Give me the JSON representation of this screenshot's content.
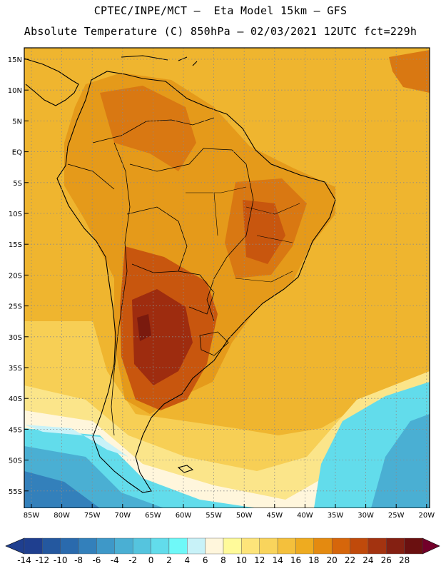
{
  "header": {
    "line1": "CPTEC/INPE/MCT –  Eta Model 15km – GFS",
    "line2": "Absolute Temperature (C) 850hPa – 02/03/2021 12UTC fct=229h"
  },
  "map": {
    "lat_labels": [
      "15N",
      "10N",
      "5N",
      "EQ",
      "5S",
      "10S",
      "15S",
      "20S",
      "25S",
      "30S",
      "35S",
      "40S",
      "45S",
      "50S",
      "55S"
    ],
    "lon_labels": [
      "85W",
      "80W",
      "75W",
      "70W",
      "65W",
      "60W",
      "55W",
      "50W",
      "45W",
      "40W",
      "35W",
      "30W",
      "25W",
      "20W"
    ]
  },
  "colorbar": {
    "labels": [
      "-14",
      "-12",
      "-10",
      "-8",
      "-6",
      "-4",
      "-2",
      "0",
      "2",
      "4",
      "6",
      "8",
      "10",
      "12",
      "14",
      "16",
      "18",
      "20",
      "22",
      "24",
      "26",
      "28"
    ],
    "colors": [
      "#1f3f8f",
      "#24589f",
      "#2a6aad",
      "#3380bb",
      "#3e98c8",
      "#4aafd3",
      "#55c4de",
      "#62dceb",
      "#6ff8f8",
      "#c8f2f8",
      "#fff6dc",
      "#fffa9a",
      "#fde47a",
      "#f9d45c",
      "#f4c03c",
      "#eeab20",
      "#e48a10",
      "#d6660b",
      "#c04a0b",
      "#a33310",
      "#842012",
      "#6a1010"
    ],
    "under_color": "#1f3f8f",
    "over_color": "#72002a"
  },
  "colors": {
    "ocean_warm": "#efb52f",
    "ocean_tropic": "#f2b72c",
    "land_warm": "#e59a1a",
    "land_hot": "#c8560e",
    "land_hottest": "#9e2c0f",
    "cold": "#5cd7ea",
    "colder": "#3fa0cc",
    "coldest": "#2a6aad"
  }
}
